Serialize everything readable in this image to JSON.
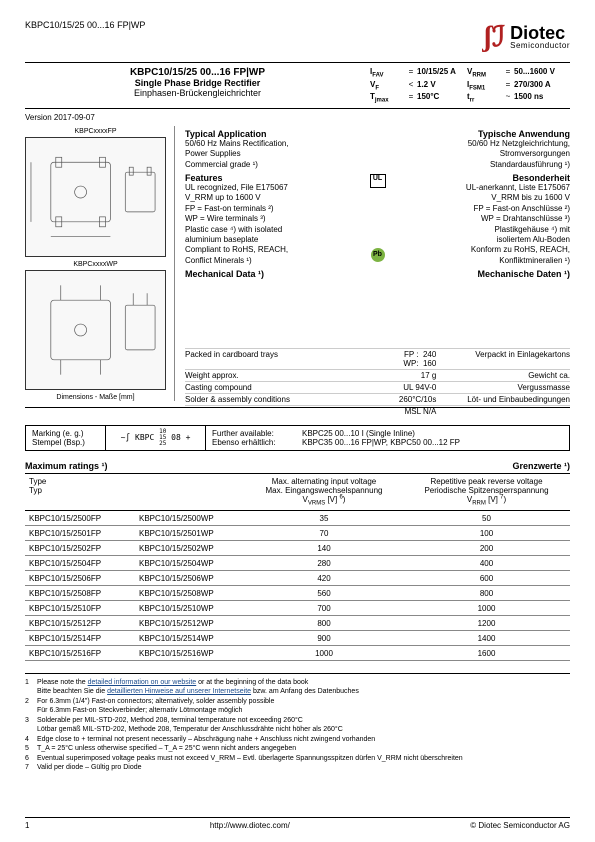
{
  "header": {
    "part_top": "KBPC10/15/25 00...16 FP|WP",
    "logo_main": "Diotec",
    "logo_sub": "Semiconductor"
  },
  "title": {
    "main": "KBPC10/15/25 00...16 FP|WP",
    "sub_en": "Single Phase Bridge Rectifier",
    "sub_de": "Einphasen-Brückengleichrichter",
    "params": [
      {
        "s": "I",
        "sub": "FAV",
        "op": "=",
        "v": "10/15/25 A",
        "s2": "V",
        "sub2": "RRM",
        "op2": "=",
        "v2": "50...1600 V"
      },
      {
        "s": "V",
        "sub": "F",
        "op": "<",
        "v": "1.2 V",
        "s2": "I",
        "sub2": "FSM1",
        "op2": "=",
        "v2": "270/300 A"
      },
      {
        "s": "T",
        "sub": "jmax",
        "op": "=",
        "v": "150°C",
        "s2": "t",
        "sub2": "rr",
        "op2": "~",
        "v2": "1500 ns"
      }
    ]
  },
  "version": "Version 2017-09-07",
  "diagrams": {
    "label_fp": "KBPCxxxxFP",
    "label_wp": "KBPCxxxxWP",
    "dim": "Dimensions - Maße [mm]"
  },
  "app": {
    "head_en": "Typical Application",
    "lines_en": [
      "50/60 Hz Mains Rectification,",
      "Power Supplies",
      "Commercial grade ¹)"
    ],
    "head_de": "Typische Anwendung",
    "lines_de": [
      "50/60 Hz Netzgleichrichtung,",
      "Stromversorgungen",
      "Standardausführung ¹)"
    ]
  },
  "feat": {
    "head_en": "Features",
    "lines_en": [
      "UL recognized, File E175067",
      "V_RRM up to 1600 V",
      "FP = Fast-on terminals ²)",
      "WP = Wire terminals ³)",
      "Plastic case ⁴) with isolated",
      "aluminium baseplate",
      "Compliant to RoHS, REACH,",
      "Conflict Minerals ¹)"
    ],
    "head_de": "Besonderheit",
    "lines_de": [
      "UL-anerkannt, Liste E175067",
      "V_RRM bis zu 1600 V",
      "FP = Fast-on Anschlüsse ²)",
      "WP = Drahtanschlüsse ³)",
      "Plastikgehäuse ⁴) mit",
      "isoliertem Alu-Boden",
      "Konform zu RoHS, REACH,",
      "Konfliktmineralien ¹)"
    ]
  },
  "mech": {
    "head_en": "Mechanical Data ¹)",
    "head_de": "Mechanische Daten ¹)",
    "rows": [
      {
        "en": "Packed in cardboard trays",
        "mid": "FP :  240\nWP:  160",
        "de": "Verpackt in Einlagekartons"
      },
      {
        "en": "Weight approx.",
        "mid": "17 g",
        "de": "Gewicht ca."
      },
      {
        "en": "Casting compound",
        "mid": "UL 94V-0",
        "de": "Vergussmasse"
      },
      {
        "en": "Solder & assembly conditions",
        "mid": "260°C/10s",
        "de": "Löt- und Einbaubedingungen"
      },
      {
        "en": "",
        "mid": "MSL N/A",
        "de": ""
      }
    ]
  },
  "marking": {
    "l1_en": "Marking (e. g.)",
    "l1_de": "Stempel (Bsp.)",
    "stamp": "~∫ KBPC 10 08 +",
    "stamp_mid": "15",
    "stamp_bot": "25",
    "avail_en": "Further available:",
    "avail_de": "Ebenso erhältlich:",
    "avail_v1": "KBPC25 00...10 I (Single Inline)",
    "avail_v2": "KBPC35 00...16 FP|WP, KBPC50 00...12 FP"
  },
  "ratings": {
    "head_en": "Maximum ratings ¹)",
    "head_de": "Grenzwerte ¹)",
    "col_type_en": "Type",
    "col_type_de": "Typ",
    "col2_en": "Max. alternating input voltage",
    "col2_de": "Max. Eingangswechselspannung",
    "col2_sym": "V_VRMS [V] ⁶)",
    "col3_en": "Repetitive peak reverse voltage",
    "col3_de": "Periodische Spitzensperrspannung",
    "col3_sym": "V_RRM [V] ⁷)",
    "rows": [
      {
        "a": "KBPC10/15/2500FP",
        "b": "KBPC10/15/2500WP",
        "v1": "35",
        "v2": "50"
      },
      {
        "a": "KBPC10/15/2501FP",
        "b": "KBPC10/15/2501WP",
        "v1": "70",
        "v2": "100"
      },
      {
        "a": "KBPC10/15/2502FP",
        "b": "KBPC10/15/2502WP",
        "v1": "140",
        "v2": "200"
      },
      {
        "a": "KBPC10/15/2504FP",
        "b": "KBPC10/15/2504WP",
        "v1": "280",
        "v2": "400"
      },
      {
        "a": "KBPC10/15/2506FP",
        "b": "KBPC10/15/2506WP",
        "v1": "420",
        "v2": "600"
      },
      {
        "a": "KBPC10/15/2508FP",
        "b": "KBPC10/15/2508WP",
        "v1": "560",
        "v2": "800"
      },
      {
        "a": "KBPC10/15/2510FP",
        "b": "KBPC10/15/2510WP",
        "v1": "700",
        "v2": "1000"
      },
      {
        "a": "KBPC10/15/2512FP",
        "b": "KBPC10/15/2512WP",
        "v1": "800",
        "v2": "1200"
      },
      {
        "a": "KBPC10/15/2514FP",
        "b": "KBPC10/15/2514WP",
        "v1": "900",
        "v2": "1400"
      },
      {
        "a": "KBPC10/15/2516FP",
        "b": "KBPC10/15/2516WP",
        "v1": "1000",
        "v2": "1600"
      }
    ]
  },
  "footnotes": [
    {
      "n": "1",
      "en": "Please note the detailed information on our website or at the beginning of the data book",
      "de": "Bitte beachten Sie die detaillierten Hinweise auf unserer Internetseite bzw. am Anfang des Datenbuches"
    },
    {
      "n": "2",
      "en": "For 6.3mm (1/4\") Fast-on connectors; alternatively, solder assembly possible",
      "de": "Für 6.3mm Fast-on Steckverbinder; alternativ Lötmontage möglich"
    },
    {
      "n": "3",
      "en": "Solderable per MIL-STD-202, Method 208, terminal temperature not exceeding 260°C",
      "de": "Lötbar gemäß MIL-STD-202, Methode 208, Temperatur der Anschlussdrähte nicht höher als 260°C"
    },
    {
      "n": "4",
      "en": "Edge close to + terminal not present necessarily – Abschrägung nahe + Anschluss nicht zwingend vorhanden",
      "de": ""
    },
    {
      "n": "5",
      "en": "T_A = 25°C unless otherwise specified – T_A = 25°C wenn nicht anders angegeben",
      "de": ""
    },
    {
      "n": "6",
      "en": "Eventual superimposed voltage peaks must not exceed V_RRM – Evtl. überlagerte Spannungsspitzen dürfen V_RRM nicht überschreiten",
      "de": ""
    },
    {
      "n": "7",
      "en": "Valid per diode – Gültig pro Diode",
      "de": ""
    }
  ],
  "footer": {
    "page": "1",
    "url": "http://www.diotec.com/",
    "copy": "© Diotec Semiconductor AG"
  }
}
